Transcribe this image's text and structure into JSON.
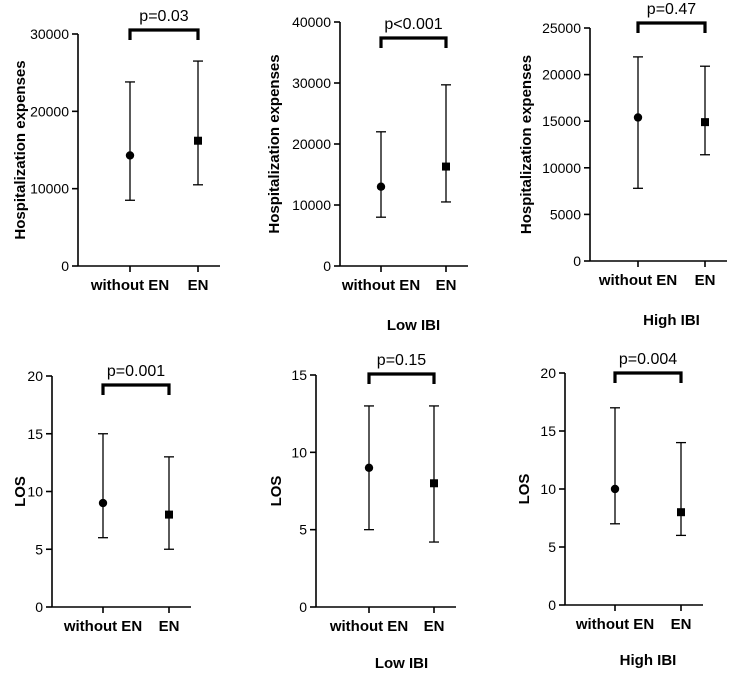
{
  "chart_data": [
    {
      "type": "scatter",
      "title": "",
      "xlabel": "",
      "ylabel": "Hospitalization expenses",
      "categories": [
        "without EN",
        "EN"
      ],
      "ylim": [
        0,
        30000
      ],
      "yticks": [
        0,
        10000,
        20000,
        30000
      ],
      "series": [
        {
          "name": "without EN",
          "marker": "circle",
          "median": 14300,
          "lower": 8500,
          "upper": 23800
        },
        {
          "name": "EN",
          "marker": "square",
          "median": 16200,
          "lower": 10500,
          "upper": 26500
        }
      ],
      "annotation": "p=0.03"
    },
    {
      "type": "scatter",
      "title": "",
      "xlabel": "Low IBI",
      "ylabel": "Hospitalization expenses",
      "categories": [
        "without EN",
        "EN"
      ],
      "ylim": [
        0,
        40000
      ],
      "yticks": [
        0,
        10000,
        20000,
        30000,
        40000
      ],
      "series": [
        {
          "name": "without EN",
          "marker": "circle",
          "median": 13000,
          "lower": 8000,
          "upper": 22000
        },
        {
          "name": "EN",
          "marker": "square",
          "median": 16300,
          "lower": 10500,
          "upper": 29700
        }
      ],
      "annotation": "p<0.001"
    },
    {
      "type": "scatter",
      "title": "",
      "xlabel": "High IBI",
      "ylabel": "Hospitalization expenses",
      "categories": [
        "without EN",
        "EN"
      ],
      "ylim": [
        0,
        25000
      ],
      "yticks": [
        0,
        5000,
        10000,
        15000,
        20000,
        25000
      ],
      "series": [
        {
          "name": "without EN",
          "marker": "circle",
          "median": 15400,
          "lower": 7800,
          "upper": 21900
        },
        {
          "name": "EN",
          "marker": "square",
          "median": 14900,
          "lower": 11400,
          "upper": 20900
        }
      ],
      "annotation": "p=0.47"
    },
    {
      "type": "scatter",
      "title": "",
      "xlabel": "",
      "ylabel": "LOS",
      "categories": [
        "without EN",
        "EN"
      ],
      "ylim": [
        0,
        20
      ],
      "yticks": [
        0,
        5,
        10,
        15,
        20
      ],
      "series": [
        {
          "name": "without EN",
          "marker": "circle",
          "median": 9,
          "lower": 6,
          "upper": 15
        },
        {
          "name": "EN",
          "marker": "square",
          "median": 8,
          "lower": 5,
          "upper": 13
        }
      ],
      "annotation": "p=0.001"
    },
    {
      "type": "scatter",
      "title": "",
      "xlabel": "Low IBI",
      "ylabel": "LOS",
      "categories": [
        "without EN",
        "EN"
      ],
      "ylim": [
        0,
        15
      ],
      "yticks": [
        0,
        5,
        10,
        15
      ],
      "series": [
        {
          "name": "without EN",
          "marker": "circle",
          "median": 9,
          "lower": 5,
          "upper": 13
        },
        {
          "name": "EN",
          "marker": "square",
          "median": 8,
          "lower": 4.2,
          "upper": 13
        }
      ],
      "annotation": "p=0.15"
    },
    {
      "type": "scatter",
      "title": "",
      "xlabel": "High IBI",
      "ylabel": "LOS",
      "categories": [
        "without EN",
        "EN"
      ],
      "ylim": [
        0,
        20
      ],
      "yticks": [
        0,
        5,
        10,
        15,
        20
      ],
      "series": [
        {
          "name": "without EN",
          "marker": "circle",
          "median": 10,
          "lower": 7,
          "upper": 17
        },
        {
          "name": "EN",
          "marker": "square",
          "median": 8,
          "lower": 6,
          "upper": 14
        }
      ],
      "annotation": "p=0.004"
    }
  ]
}
